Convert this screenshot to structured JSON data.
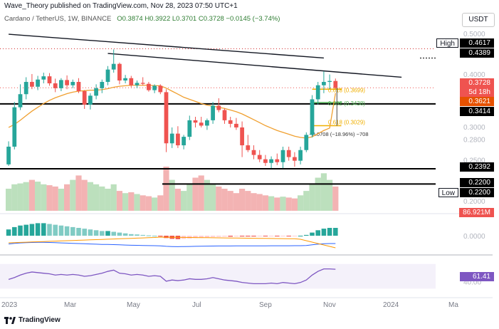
{
  "header": {
    "publisher": "Wave_Theory published on TradingView.com, Nov 28, 2023 07:50 UTC+1",
    "symbol": "Cardano / TetherUS, 1W, BINANCE",
    "ohlc": "O0.3874  H0.3922  L0.3701  C0.3728  −0.0145 (−3.74%)",
    "currency": "USDT"
  },
  "price_tags": {
    "high_label": "High",
    "high_value": "0.4617",
    "level_4389": "0.4389",
    "last_price": "0.3728",
    "countdown": "5d 18h",
    "ema_value": "0.3621",
    "level_3414": "0.3414",
    "level_2392": "0.2392",
    "level_2200": "0.2200",
    "low_label": "Low",
    "low_value": "0.2200",
    "volume": "86.921M",
    "rsi": "61.41"
  },
  "fib_labels": {
    "f618_upper": "0.618 (0.3699)",
    "f382": "0.382 (0.3438)",
    "f618_lower": "0.618 (0.3029)",
    "measure": "−0.0708 (−18.96%) −708"
  },
  "footer": {
    "brand": "TradingView"
  },
  "colors": {
    "up": "#26a69a",
    "down": "#ef5350",
    "ema": "#f0a030",
    "rsi": "#7e57c2",
    "trend": "#131722"
  },
  "chart_data": {
    "type": "candlestick",
    "title": "Cardano / TetherUS, 1W, BINANCE",
    "x_ticks": [
      "2023",
      "Mar",
      "May",
      "Jul",
      "Sep",
      "Nov",
      "2024",
      "Ma"
    ],
    "price_axis": {
      "ticks": [
        0.5,
        0.4,
        0.35,
        0.3,
        0.28,
        0.25,
        0.2
      ],
      "scale": "log",
      "range": [
        0.19,
        0.52
      ]
    },
    "candles": [
      {
        "o": 0.245,
        "h": 0.278,
        "l": 0.243,
        "c": 0.27
      },
      {
        "o": 0.27,
        "h": 0.345,
        "l": 0.266,
        "c": 0.335
      },
      {
        "o": 0.335,
        "h": 0.38,
        "l": 0.33,
        "c": 0.36
      },
      {
        "o": 0.36,
        "h": 0.395,
        "l": 0.35,
        "c": 0.385
      },
      {
        "o": 0.385,
        "h": 0.402,
        "l": 0.37,
        "c": 0.375
      },
      {
        "o": 0.375,
        "h": 0.398,
        "l": 0.368,
        "c": 0.39
      },
      {
        "o": 0.39,
        "h": 0.405,
        "l": 0.382,
        "c": 0.397
      },
      {
        "o": 0.397,
        "h": 0.404,
        "l": 0.377,
        "c": 0.382
      },
      {
        "o": 0.382,
        "h": 0.392,
        "l": 0.364,
        "c": 0.372
      },
      {
        "o": 0.372,
        "h": 0.393,
        "l": 0.366,
        "c": 0.389
      },
      {
        "o": 0.389,
        "h": 0.399,
        "l": 0.37,
        "c": 0.378
      },
      {
        "o": 0.378,
        "h": 0.39,
        "l": 0.372,
        "c": 0.385
      },
      {
        "o": 0.385,
        "h": 0.393,
        "l": 0.362,
        "c": 0.366
      },
      {
        "o": 0.366,
        "h": 0.368,
        "l": 0.332,
        "c": 0.34
      },
      {
        "o": 0.34,
        "h": 0.362,
        "l": 0.331,
        "c": 0.357
      },
      {
        "o": 0.357,
        "h": 0.38,
        "l": 0.35,
        "c": 0.372
      },
      {
        "o": 0.372,
        "h": 0.39,
        "l": 0.362,
        "c": 0.385
      },
      {
        "o": 0.385,
        "h": 0.42,
        "l": 0.378,
        "c": 0.412
      },
      {
        "o": 0.412,
        "h": 0.46,
        "l": 0.405,
        "c": 0.425
      },
      {
        "o": 0.425,
        "h": 0.428,
        "l": 0.38,
        "c": 0.388
      },
      {
        "o": 0.388,
        "h": 0.4,
        "l": 0.382,
        "c": 0.393
      },
      {
        "o": 0.393,
        "h": 0.398,
        "l": 0.374,
        "c": 0.378
      },
      {
        "o": 0.378,
        "h": 0.388,
        "l": 0.372,
        "c": 0.383
      },
      {
        "o": 0.383,
        "h": 0.395,
        "l": 0.378,
        "c": 0.381
      },
      {
        "o": 0.381,
        "h": 0.385,
        "l": 0.365,
        "c": 0.368
      },
      {
        "o": 0.368,
        "h": 0.38,
        "l": 0.362,
        "c": 0.377
      },
      {
        "o": 0.377,
        "h": 0.38,
        "l": 0.36,
        "c": 0.364
      },
      {
        "o": 0.364,
        "h": 0.37,
        "l": 0.262,
        "c": 0.275
      },
      {
        "o": 0.275,
        "h": 0.3,
        "l": 0.268,
        "c": 0.29
      },
      {
        "o": 0.29,
        "h": 0.302,
        "l": 0.268,
        "c": 0.272
      },
      {
        "o": 0.272,
        "h": 0.288,
        "l": 0.266,
        "c": 0.285
      },
      {
        "o": 0.285,
        "h": 0.32,
        "l": 0.28,
        "c": 0.312
      },
      {
        "o": 0.312,
        "h": 0.318,
        "l": 0.3,
        "c": 0.308
      },
      {
        "o": 0.308,
        "h": 0.318,
        "l": 0.3,
        "c": 0.303
      },
      {
        "o": 0.303,
        "h": 0.315,
        "l": 0.296,
        "c": 0.312
      },
      {
        "o": 0.312,
        "h": 0.345,
        "l": 0.306,
        "c": 0.338
      },
      {
        "o": 0.338,
        "h": 0.352,
        "l": 0.326,
        "c": 0.33
      },
      {
        "o": 0.33,
        "h": 0.333,
        "l": 0.306,
        "c": 0.312
      },
      {
        "o": 0.312,
        "h": 0.318,
        "l": 0.3,
        "c": 0.306
      },
      {
        "o": 0.306,
        "h": 0.316,
        "l": 0.296,
        "c": 0.3
      },
      {
        "o": 0.3,
        "h": 0.31,
        "l": 0.255,
        "c": 0.272
      },
      {
        "o": 0.272,
        "h": 0.288,
        "l": 0.262,
        "c": 0.265
      },
      {
        "o": 0.265,
        "h": 0.272,
        "l": 0.252,
        "c": 0.258
      },
      {
        "o": 0.258,
        "h": 0.265,
        "l": 0.248,
        "c": 0.252
      },
      {
        "o": 0.252,
        "h": 0.258,
        "l": 0.243,
        "c": 0.247
      },
      {
        "o": 0.247,
        "h": 0.256,
        "l": 0.24,
        "c": 0.252
      },
      {
        "o": 0.252,
        "h": 0.26,
        "l": 0.244,
        "c": 0.248
      },
      {
        "o": 0.248,
        "h": 0.27,
        "l": 0.24,
        "c": 0.265
      },
      {
        "o": 0.265,
        "h": 0.27,
        "l": 0.25,
        "c": 0.255
      },
      {
        "o": 0.255,
        "h": 0.262,
        "l": 0.242,
        "c": 0.25
      },
      {
        "o": 0.25,
        "h": 0.27,
        "l": 0.245,
        "c": 0.265
      },
      {
        "o": 0.265,
        "h": 0.292,
        "l": 0.262,
        "c": 0.288
      },
      {
        "o": 0.288,
        "h": 0.358,
        "l": 0.284,
        "c": 0.35
      },
      {
        "o": 0.35,
        "h": 0.385,
        "l": 0.34,
        "c": 0.378
      },
      {
        "o": 0.378,
        "h": 0.408,
        "l": 0.362,
        "c": 0.385
      },
      {
        "o": 0.385,
        "h": 0.401,
        "l": 0.37,
        "c": 0.387
      },
      {
        "o": 0.387,
        "h": 0.3922,
        "l": 0.3701,
        "c": 0.3728
      }
    ],
    "ema": [
      0.3,
      0.305,
      0.312,
      0.32,
      0.328,
      0.335,
      0.342,
      0.348,
      0.353,
      0.357,
      0.361,
      0.364,
      0.366,
      0.367,
      0.368,
      0.368,
      0.369,
      0.371,
      0.374,
      0.376,
      0.377,
      0.378,
      0.378,
      0.378,
      0.378,
      0.377,
      0.377,
      0.372,
      0.366,
      0.36,
      0.354,
      0.35,
      0.346,
      0.342,
      0.339,
      0.337,
      0.335,
      0.333,
      0.33,
      0.327,
      0.323,
      0.318,
      0.313,
      0.308,
      0.303,
      0.299,
      0.295,
      0.292,
      0.289,
      0.286,
      0.284,
      0.283,
      0.285,
      0.29,
      0.295,
      0.299,
      0.3621
    ],
    "levels": [
      0.4389,
      0.3414,
      0.2392,
      0.22
    ],
    "fib_levels": [
      0.3699,
      0.3438,
      0.3029
    ],
    "trendlines": [
      {
        "from": [
          0,
          0.5
        ],
        "to": [
          54,
          0.4389
        ]
      },
      {
        "from": [
          17,
          0.45
        ],
        "to": [
          60,
          0.395
        ]
      }
    ],
    "volume": [
      0.5,
      0.6,
      0.62,
      0.65,
      0.7,
      0.66,
      0.6,
      0.58,
      0.55,
      0.5,
      0.6,
      0.7,
      0.8,
      0.7,
      0.65,
      0.6,
      0.55,
      0.5,
      0.6,
      0.45,
      0.4,
      0.42,
      0.38,
      0.35,
      0.33,
      0.3,
      0.35,
      1.0,
      0.7,
      0.5,
      0.45,
      0.6,
      0.75,
      0.8,
      0.7,
      0.6,
      0.55,
      0.5,
      0.45,
      0.4,
      0.5,
      0.45,
      0.4,
      0.38,
      0.35,
      0.33,
      0.3,
      0.32,
      0.3,
      0.28,
      0.35,
      0.45,
      0.6,
      0.75,
      0.85,
      0.7,
      0.55
    ],
    "macd_hist": [
      0.4,
      0.55,
      0.65,
      0.7,
      0.75,
      0.8,
      0.8,
      0.75,
      0.7,
      0.65,
      0.6,
      0.55,
      0.5,
      0.45,
      0.4,
      0.35,
      0.3,
      0.3,
      0.25,
      0.2,
      0.15,
      0.1,
      0.08,
      0.05,
      0.02,
      0.0,
      -0.05,
      -0.15,
      -0.2,
      -0.22,
      -0.2,
      -0.18,
      -0.15,
      -0.12,
      -0.1,
      -0.08,
      -0.07,
      -0.06,
      -0.06,
      -0.05,
      -0.05,
      -0.05,
      -0.05,
      -0.04,
      -0.04,
      -0.03,
      -0.03,
      -0.02,
      -0.02,
      -0.01,
      0.0,
      0.05,
      0.2,
      0.35,
      0.45,
      0.5,
      0.5
    ],
    "rsi": [
      45,
      48,
      52,
      55,
      57,
      56,
      55,
      54,
      52,
      53,
      52,
      53,
      52,
      50,
      51,
      53,
      55,
      58,
      60,
      55,
      54,
      52,
      53,
      52,
      50,
      51,
      50,
      42,
      44,
      43,
      44,
      46,
      45,
      45,
      46,
      48,
      46,
      44,
      43,
      42,
      40,
      39,
      38,
      38,
      38,
      39,
      38,
      40,
      39,
      38,
      40,
      44,
      52,
      58,
      62,
      62,
      61.41
    ],
    "rsi_range": [
      20,
      80
    ]
  }
}
